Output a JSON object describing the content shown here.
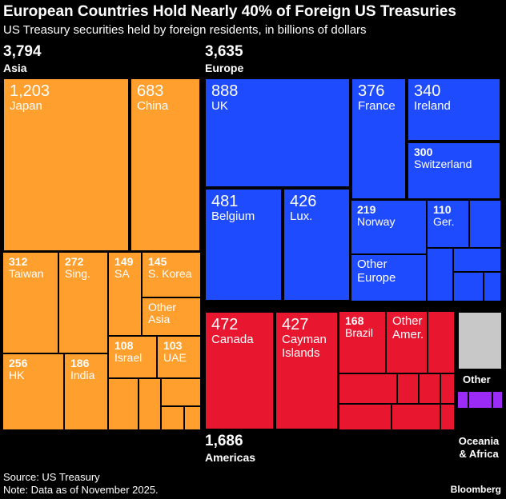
{
  "title": "European Countries Hold Nearly 40% of Foreign US Treasuries",
  "subtitle": "US Treasury securities held by foreign residents, in billions of dollars",
  "regions": {
    "asia": {
      "value": "3,794",
      "name": "Asia"
    },
    "europe": {
      "value": "3,635",
      "name": "Europe"
    },
    "americas": {
      "value": "1,686",
      "name": "Americas"
    },
    "other": {
      "name": "Other"
    },
    "oceania": {
      "name_line1": "Oceania",
      "name_line2": "& Africa"
    }
  },
  "colors": {
    "asia": "#FF9F2E",
    "europe": "#1F4BFF",
    "americas": "#E8162F",
    "other": "#C8C8C8",
    "oceania": "#9B2BF5",
    "border": "#000000"
  },
  "chart_data": {
    "type": "treemap",
    "unit": "billions of dollars",
    "regions": [
      {
        "name": "Asia",
        "total": 3794,
        "items": [
          {
            "label": "Japan",
            "value": 1203
          },
          {
            "label": "China",
            "value": 683
          },
          {
            "label": "Taiwan",
            "value": 312
          },
          {
            "label": "Sing.",
            "value": 272
          },
          {
            "label": "SA",
            "value": 149
          },
          {
            "label": "S. Korea",
            "value": 145
          },
          {
            "label": "Other Asia",
            "value": null
          },
          {
            "label": "Israel",
            "value": 108
          },
          {
            "label": "UAE",
            "value": 103
          },
          {
            "label": "HK",
            "value": 256
          },
          {
            "label": "India",
            "value": 186
          }
        ]
      },
      {
        "name": "Europe",
        "total": 3635,
        "items": [
          {
            "label": "UK",
            "value": 888
          },
          {
            "label": "France",
            "value": 376
          },
          {
            "label": "Ireland",
            "value": 340
          },
          {
            "label": "Switzerland",
            "value": 300
          },
          {
            "label": "Belgium",
            "value": 481
          },
          {
            "label": "Lux.",
            "value": 426
          },
          {
            "label": "Norway",
            "value": 219
          },
          {
            "label": "Ger.",
            "value": 110
          },
          {
            "label": "Other Europe",
            "value": null
          }
        ]
      },
      {
        "name": "Americas",
        "total": 1686,
        "items": [
          {
            "label": "Canada",
            "value": 472
          },
          {
            "label": "Cayman Islands",
            "value": 427
          },
          {
            "label": "Brazil",
            "value": 168
          },
          {
            "label": "Other Amer.",
            "value": null
          }
        ]
      },
      {
        "name": "Other",
        "total": null,
        "items": []
      },
      {
        "name": "Oceania & Africa",
        "total": null,
        "items": []
      }
    ]
  },
  "source": "Source: US Treasury",
  "note": "Note: Data as of November 2025.",
  "brand": "Bloomberg"
}
